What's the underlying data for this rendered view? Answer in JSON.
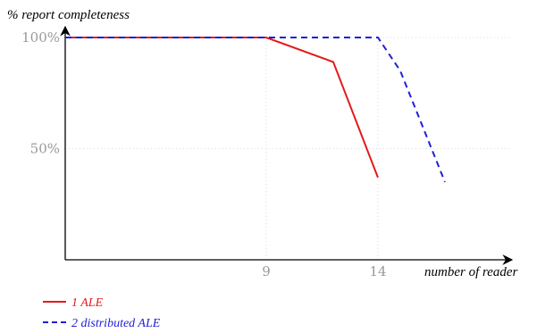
{
  "chart_data": {
    "type": "line",
    "title": "",
    "ylabel": "% report completeness",
    "xlabel": "number of reader",
    "xlim": [
      0,
      22
    ],
    "ylim": [
      0,
      100
    ],
    "xticks": [
      {
        "value": 9,
        "label": "9"
      },
      {
        "value": 14,
        "label": "14"
      }
    ],
    "yticks": [
      {
        "value": 50,
        "label": "50%"
      },
      {
        "value": 100,
        "label": "100%"
      }
    ],
    "grid": true,
    "legend_position": "bottom-left",
    "series": [
      {
        "name": "1 ALE",
        "color": "#e41a1c",
        "dash": "solid",
        "x": [
          0,
          9,
          12,
          14
        ],
        "y": [
          100,
          100,
          89,
          37
        ]
      },
      {
        "name": "2 distributed ALE",
        "color": "#1f1fd6",
        "dash": "dashed",
        "x": [
          0,
          14,
          15,
          17
        ],
        "y": [
          100,
          100,
          85,
          35
        ]
      }
    ]
  }
}
